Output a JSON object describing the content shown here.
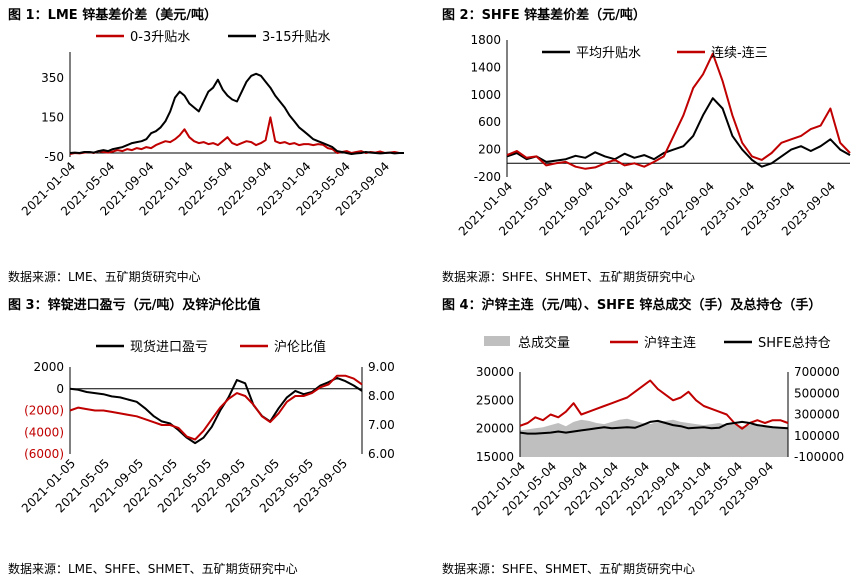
{
  "colors": {
    "black": "#000000",
    "red": "#c00000",
    "gray": "#bfbfbf",
    "axisRedText": "#c00000"
  },
  "panels": [
    {
      "title": "图 1：LME 锌基差价差（美元/吨）",
      "source": "数据来源：LME、五矿期货研究中心"
    },
    {
      "title": "图 2：SHFE 锌基差价差（元/吨）",
      "source": "数据来源：SHFE、SHMET、五矿期货研究中心"
    },
    {
      "title": "图 3：锌锭进口盈亏（元/吨）及锌沪伦比值",
      "source": "数据来源：LME、SHFE、SHMET、五矿期货研究中心"
    },
    {
      "title": "图 4：沪锌主连（元/吨）、SHFE 锌总成交（手）及总持仓（手）",
      "source": "数据来源：SHFE、SHMET、五矿期货研究中心"
    }
  ],
  "chart_data": [
    {
      "type": "line",
      "title": "图 1：LME 锌基差价差（美元/吨）",
      "x_ticks": [
        "2021-01-04",
        "2021-05-04",
        "2021-09-04",
        "2022-01-04",
        "2022-05-04",
        "2022-09-04",
        "2023-01-04",
        "2023-05-04",
        "2023-09-04"
      ],
      "y_ticks": [
        350,
        150,
        -50
      ],
      "ylim": [
        -50,
        480
      ],
      "series": [
        {
          "name": "0-3升贴水",
          "color": "#c00000",
          "x": [
            0,
            0.5,
            1,
            1.5,
            2,
            2.5,
            3,
            3.5,
            4,
            4.5,
            5,
            5.5,
            6,
            6.5,
            7,
            7.5,
            8,
            8.5,
            9,
            9.5,
            10,
            10.5,
            11,
            11.5,
            12,
            12.5,
            13,
            13.5,
            14,
            14.5,
            15,
            15.5,
            16,
            16.5,
            17,
            17.5,
            18,
            18.5,
            19,
            19.5,
            20,
            20.5,
            21,
            21.5,
            22,
            22.5,
            23,
            23.5,
            24,
            24.5,
            25,
            25.5,
            26,
            26.5,
            27,
            27.5,
            28,
            28.5,
            29,
            29.5,
            30,
            30.5,
            31,
            31.5,
            32,
            32.5,
            33,
            33.5,
            34,
            34.5,
            35
          ],
          "y": [
            -35,
            -30,
            -32,
            -28,
            -25,
            -30,
            -20,
            -25,
            -28,
            -22,
            -15,
            -20,
            -10,
            -15,
            -5,
            -10,
            0,
            -5,
            10,
            20,
            30,
            25,
            40,
            60,
            90,
            50,
            30,
            20,
            25,
            15,
            20,
            10,
            30,
            50,
            20,
            10,
            20,
            30,
            25,
            10,
            20,
            35,
            150,
            30,
            20,
            25,
            15,
            20,
            10,
            15,
            15,
            10,
            15,
            12,
            -5,
            -10,
            -30,
            -25,
            -20,
            -30,
            -25,
            -20,
            -30,
            -25,
            -28,
            -22,
            -30,
            -28,
            -25,
            -30,
            -30
          ]
        },
        {
          "name": "3-15升贴水",
          "color": "#000000",
          "x": [
            0,
            0.5,
            1,
            1.5,
            2,
            2.5,
            3,
            3.5,
            4,
            4.5,
            5,
            5.5,
            6,
            6.5,
            7,
            7.5,
            8,
            8.5,
            9,
            9.5,
            10,
            10.5,
            11,
            11.5,
            12,
            12.5,
            13,
            13.5,
            14,
            14.5,
            15,
            15.5,
            16,
            16.5,
            17,
            17.5,
            18,
            18.5,
            19,
            19.5,
            20,
            20.5,
            21,
            21.5,
            22,
            22.5,
            23,
            23.5,
            24,
            24.5,
            25,
            25.5,
            26,
            26.5,
            27,
            27.5,
            28,
            28.5,
            29,
            29.5,
            30,
            30.5,
            31,
            31.5,
            32,
            32.5,
            33,
            33.5,
            34,
            34.5,
            35
          ],
          "y": [
            -30,
            -28,
            -30,
            -25,
            -25,
            -28,
            -20,
            -15,
            -20,
            -10,
            -5,
            0,
            10,
            20,
            25,
            30,
            40,
            70,
            80,
            100,
            130,
            180,
            250,
            280,
            260,
            220,
            200,
            180,
            230,
            280,
            300,
            340,
            290,
            260,
            240,
            230,
            280,
            330,
            360,
            370,
            360,
            330,
            300,
            260,
            230,
            200,
            160,
            130,
            100,
            80,
            60,
            40,
            30,
            20,
            10,
            0,
            -20,
            -25,
            -30,
            -35,
            -32,
            -30,
            -25,
            -28,
            -30,
            -32,
            -30,
            -28,
            -32,
            -30,
            -30
          ]
        }
      ]
    },
    {
      "type": "line",
      "title": "图 2：SHFE 锌基差价差（元/吨）",
      "x_ticks": [
        "2021-01-04",
        "2021-05-04",
        "2021-09-04",
        "2022-01-04",
        "2022-05-04",
        "2022-09-04",
        "2023-01-04",
        "2023-05-04",
        "2023-09-04"
      ],
      "y_ticks": [
        1800,
        1400,
        1000,
        600,
        200,
        -200
      ],
      "ylim": [
        -200,
        1800
      ],
      "series": [
        {
          "name": "平均升贴水",
          "color": "#000000",
          "x": [
            0,
            1,
            2,
            3,
            4,
            5,
            6,
            7,
            8,
            9,
            10,
            11,
            12,
            13,
            14,
            15,
            16,
            17,
            18,
            19,
            20,
            21,
            22,
            23,
            24,
            25,
            26,
            27,
            28,
            29,
            30,
            31,
            32,
            33,
            34,
            35
          ],
          "y": [
            100,
            150,
            60,
            100,
            20,
            40,
            60,
            110,
            80,
            160,
            100,
            60,
            140,
            80,
            120,
            60,
            150,
            200,
            250,
            400,
            700,
            950,
            800,
            400,
            200,
            50,
            -50,
            0,
            100,
            200,
            250,
            180,
            250,
            350,
            200,
            120
          ]
        },
        {
          "name": "连续-连三",
          "color": "#c00000",
          "x": [
            0,
            1,
            2,
            3,
            4,
            5,
            6,
            7,
            8,
            9,
            10,
            11,
            12,
            13,
            14,
            15,
            16,
            17,
            18,
            19,
            20,
            21,
            22,
            23,
            24,
            25,
            26,
            27,
            28,
            29,
            30,
            31,
            32,
            33,
            34,
            35
          ],
          "y": [
            120,
            180,
            80,
            100,
            -30,
            0,
            20,
            -50,
            -80,
            -60,
            0,
            50,
            -30,
            0,
            -50,
            20,
            100,
            400,
            700,
            1100,
            1300,
            1600,
            1200,
            700,
            300,
            100,
            50,
            150,
            300,
            350,
            400,
            500,
            550,
            800,
            300,
            150
          ]
        }
      ]
    },
    {
      "type": "line",
      "title": "图 3：锌锭进口盈亏（元/吨）及锌沪伦比值",
      "x_ticks": [
        "2021-01-05",
        "2021-05-05",
        "2021-09-05",
        "2022-01-05",
        "2022-05-05",
        "2022-09-05",
        "2023-01-05",
        "2023-05-05",
        "2023-09-05"
      ],
      "y_left_ticks": [
        "2000",
        "0",
        "(2000)",
        "(4000)",
        "(6000)"
      ],
      "y_right_ticks": [
        "9.00",
        "8.00",
        "7.00",
        "6.00"
      ],
      "ylim_left": [
        -6000,
        2000
      ],
      "ylim_right": [
        6.0,
        9.0
      ],
      "series": [
        {
          "name": "现货进口盈亏",
          "color": "#000000",
          "axis": "left",
          "x": [
            0,
            1,
            2,
            3,
            4,
            5,
            6,
            7,
            8,
            9,
            10,
            11,
            12,
            13,
            14,
            15,
            16,
            17,
            18,
            19,
            20,
            21,
            22,
            23,
            24,
            25,
            26,
            27,
            28,
            29,
            30,
            31,
            32,
            33,
            34,
            35
          ],
          "y": [
            0,
            -100,
            -300,
            -400,
            -500,
            -700,
            -800,
            -1000,
            -1200,
            -1800,
            -2500,
            -3000,
            -3200,
            -3800,
            -4500,
            -5000,
            -4500,
            -3500,
            -2000,
            -800,
            800,
            500,
            -1500,
            -2500,
            -3000,
            -1800,
            -800,
            -200,
            -500,
            -300,
            300,
            600,
            1000,
            700,
            300,
            -200
          ]
        },
        {
          "name": "沪伦比值",
          "color": "#c00000",
          "axis": "right",
          "x": [
            0,
            1,
            2,
            3,
            4,
            5,
            6,
            7,
            8,
            9,
            10,
            11,
            12,
            13,
            14,
            15,
            16,
            17,
            18,
            19,
            20,
            21,
            22,
            23,
            24,
            25,
            26,
            27,
            28,
            29,
            30,
            31,
            32,
            33,
            34,
            35
          ],
          "y": [
            7.5,
            7.6,
            7.55,
            7.5,
            7.5,
            7.45,
            7.4,
            7.35,
            7.3,
            7.2,
            7.1,
            7.0,
            7.0,
            6.9,
            6.6,
            6.5,
            6.8,
            7.2,
            7.6,
            7.9,
            8.1,
            8.0,
            7.7,
            7.3,
            7.1,
            7.4,
            7.8,
            8.0,
            8.0,
            8.1,
            8.3,
            8.4,
            8.7,
            8.7,
            8.6,
            8.4
          ]
        }
      ]
    },
    {
      "type": "line",
      "title": "图 4：沪锌主连（元/吨）、SHFE 锌总成交（手）及总持仓（手）",
      "x_ticks": [
        "2021-01-04",
        "2021-05-04",
        "2021-09-04",
        "2022-01-04",
        "2022-05-04",
        "2022-09-04",
        "2023-01-04",
        "2023-05-04",
        "2023-09-04"
      ],
      "y_left_ticks": [
        "30000",
        "25000",
        "20000",
        "15000"
      ],
      "y_right_ticks": [
        "700000",
        "500000",
        "300000",
        "100000",
        "-100000"
      ],
      "ylim_left": [
        15000,
        30000
      ],
      "ylim_right": [
        -100000,
        700000
      ],
      "series": [
        {
          "name": "总成交量",
          "color": "#bfbfbf",
          "axis": "right",
          "kind": "area",
          "x": [
            0,
            1,
            2,
            3,
            4,
            5,
            6,
            7,
            8,
            9,
            10,
            11,
            12,
            13,
            14,
            15,
            16,
            17,
            18,
            19,
            20,
            21,
            22,
            23,
            24,
            25,
            26,
            27,
            28,
            29,
            30,
            31,
            32,
            33,
            34,
            35
          ],
          "y": [
            150000,
            160000,
            170000,
            180000,
            200000,
            220000,
            190000,
            230000,
            250000,
            240000,
            220000,
            210000,
            230000,
            250000,
            260000,
            240000,
            220000,
            210000,
            230000,
            240000,
            250000,
            230000,
            220000,
            210000,
            200000,
            210000,
            220000,
            200000,
            210000,
            190000,
            200000,
            210000,
            200000,
            190000,
            180000,
            170000
          ]
        },
        {
          "name": "沪锌主连",
          "color": "#c00000",
          "axis": "left",
          "x": [
            0,
            1,
            2,
            3,
            4,
            5,
            6,
            7,
            8,
            9,
            10,
            11,
            12,
            13,
            14,
            15,
            16,
            17,
            18,
            19,
            20,
            21,
            22,
            23,
            24,
            25,
            26,
            27,
            28,
            29,
            30,
            31,
            32,
            33,
            34,
            35
          ],
          "y": [
            20500,
            21000,
            22000,
            21500,
            22500,
            22000,
            23000,
            24500,
            22500,
            23000,
            23500,
            24000,
            24500,
            25000,
            25500,
            26500,
            27500,
            28500,
            27000,
            26000,
            25000,
            25500,
            26500,
            25000,
            24000,
            23500,
            23000,
            22500,
            21000,
            20000,
            21000,
            21500,
            21000,
            21500,
            21500,
            21000
          ]
        },
        {
          "name": "SHFE总持仓",
          "color": "#000000",
          "axis": "right",
          "x": [
            0,
            1,
            2,
            3,
            4,
            5,
            6,
            7,
            8,
            9,
            10,
            11,
            12,
            13,
            14,
            15,
            16,
            17,
            18,
            19,
            20,
            21,
            22,
            23,
            24,
            25,
            26,
            27,
            28,
            29,
            30,
            31,
            32,
            33,
            34,
            35
          ],
          "y": [
            130000,
            120000,
            120000,
            125000,
            130000,
            140000,
            130000,
            140000,
            150000,
            160000,
            170000,
            180000,
            170000,
            175000,
            180000,
            175000,
            200000,
            230000,
            240000,
            220000,
            200000,
            190000,
            170000,
            175000,
            180000,
            170000,
            175000,
            210000,
            220000,
            230000,
            220000,
            200000,
            190000,
            180000,
            175000,
            170000
          ]
        }
      ]
    }
  ]
}
